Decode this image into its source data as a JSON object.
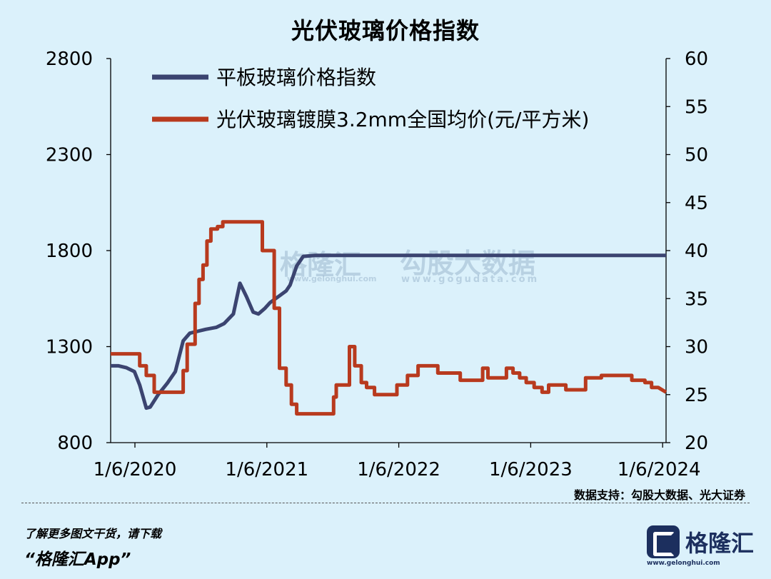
{
  "title": "光伏玻璃价格指数",
  "source": "数据支持：勾股大数据、光大证券",
  "footer": {
    "line1": "了解更多图文干货，请下载",
    "line2": "“格隆汇App”"
  },
  "brand": {
    "name": "格隆汇",
    "url": "www.gelonghui.com",
    "corner": "格隆汇"
  },
  "watermark": {
    "left_text": "格隆汇",
    "left_url": "www.gelonghui.com",
    "right_text": "勾股大数据",
    "right_url": "www.gogudata.com"
  },
  "colors": {
    "flat": "#3b4470",
    "pv": "#b83a1e",
    "background": "#dbf1fb"
  },
  "chart_data": {
    "type": "line",
    "title": "光伏玻璃价格指数",
    "x_ticks": [
      "1/6/2020",
      "1/6/2021",
      "1/6/2022",
      "1/6/2023",
      "1/6/2024"
    ],
    "y_left_ticks": [
      "800",
      "1300",
      "1800",
      "2300",
      "2800"
    ],
    "y_left_lim": [
      800,
      2800
    ],
    "y_right_ticks": [
      "20",
      "25",
      "30",
      "35",
      "40",
      "45",
      "50",
      "55",
      "60"
    ],
    "y_right_lim": [
      20,
      60
    ],
    "x_lim": [
      2020.0,
      2024.21
    ],
    "legend_position": "top",
    "series": [
      {
        "name": "平板玻璃价格指数",
        "axis": "left",
        "points": [
          [
            2020.0,
            1200
          ],
          [
            2020.06,
            1200
          ],
          [
            2020.12,
            1190
          ],
          [
            2020.18,
            1170
          ],
          [
            2020.22,
            1100
          ],
          [
            2020.27,
            980
          ],
          [
            2020.3,
            985
          ],
          [
            2020.36,
            1050
          ],
          [
            2020.43,
            1110
          ],
          [
            2020.49,
            1170
          ],
          [
            2020.55,
            1330
          ],
          [
            2020.6,
            1370
          ],
          [
            2020.66,
            1380
          ],
          [
            2020.72,
            1390
          ],
          [
            2020.8,
            1400
          ],
          [
            2020.86,
            1420
          ],
          [
            2020.93,
            1470
          ],
          [
            2020.98,
            1630
          ],
          [
            2021.03,
            1560
          ],
          [
            2021.08,
            1480
          ],
          [
            2021.12,
            1470
          ],
          [
            2021.17,
            1500
          ],
          [
            2021.21,
            1530
          ],
          [
            2021.27,
            1560
          ],
          [
            2021.33,
            1590
          ],
          [
            2021.36,
            1620
          ],
          [
            2021.41,
            1720
          ],
          [
            2021.46,
            1770
          ],
          [
            2021.55,
            1775
          ],
          [
            2022.0,
            1775
          ],
          [
            2022.5,
            1775
          ],
          [
            2023.0,
            1775
          ],
          [
            2023.5,
            1775
          ],
          [
            2024.0,
            1775
          ],
          [
            2024.21,
            1775
          ]
        ]
      },
      {
        "name": "光伏玻璃镀膜3.2mm全国均价(元/平方米)",
        "axis": "right",
        "points": [
          [
            2020.0,
            29.25
          ],
          [
            2020.22,
            29.25
          ],
          [
            2020.22,
            28.0
          ],
          [
            2020.27,
            28.0
          ],
          [
            2020.27,
            27.0
          ],
          [
            2020.33,
            27.0
          ],
          [
            2020.33,
            25.25
          ],
          [
            2020.55,
            25.25
          ],
          [
            2020.55,
            27.5
          ],
          [
            2020.58,
            27.5
          ],
          [
            2020.58,
            30.25
          ],
          [
            2020.64,
            30.25
          ],
          [
            2020.64,
            34.5
          ],
          [
            2020.67,
            34.5
          ],
          [
            2020.67,
            37.0
          ],
          [
            2020.7,
            37.0
          ],
          [
            2020.7,
            38.5
          ],
          [
            2020.73,
            38.5
          ],
          [
            2020.73,
            41.0
          ],
          [
            2020.76,
            41.0
          ],
          [
            2020.76,
            42.25
          ],
          [
            2020.81,
            42.25
          ],
          [
            2020.81,
            42.5
          ],
          [
            2020.85,
            42.5
          ],
          [
            2020.85,
            43.0
          ],
          [
            2021.15,
            43.0
          ],
          [
            2021.15,
            40.0
          ],
          [
            2021.24,
            40.0
          ],
          [
            2021.24,
            34.0
          ],
          [
            2021.28,
            34.0
          ],
          [
            2021.28,
            27.75
          ],
          [
            2021.33,
            27.75
          ],
          [
            2021.33,
            26.0
          ],
          [
            2021.37,
            26.0
          ],
          [
            2021.37,
            24.0
          ],
          [
            2021.41,
            24.0
          ],
          [
            2021.41,
            23.0
          ],
          [
            2021.69,
            23.0
          ],
          [
            2021.69,
            24.75
          ],
          [
            2021.71,
            24.75
          ],
          [
            2021.71,
            26.0
          ],
          [
            2021.81,
            26.0
          ],
          [
            2021.81,
            30.0
          ],
          [
            2021.85,
            30.0
          ],
          [
            2021.85,
            28.0
          ],
          [
            2021.9,
            28.0
          ],
          [
            2021.9,
            26.25
          ],
          [
            2021.94,
            26.25
          ],
          [
            2021.94,
            25.75
          ],
          [
            2022.0,
            25.75
          ],
          [
            2022.0,
            25.0
          ],
          [
            2022.17,
            25.0
          ],
          [
            2022.17,
            26.0
          ],
          [
            2022.25,
            26.0
          ],
          [
            2022.25,
            27.0
          ],
          [
            2022.33,
            27.0
          ],
          [
            2022.33,
            28.0
          ],
          [
            2022.48,
            28.0
          ],
          [
            2022.48,
            27.25
          ],
          [
            2022.65,
            27.25
          ],
          [
            2022.65,
            26.5
          ],
          [
            2022.82,
            26.5
          ],
          [
            2022.82,
            27.75
          ],
          [
            2022.86,
            27.75
          ],
          [
            2022.86,
            26.75
          ],
          [
            2022.92,
            26.75
          ],
          [
            2023.0,
            26.75
          ],
          [
            2023.0,
            27.75
          ],
          [
            2023.05,
            27.75
          ],
          [
            2023.05,
            27.25
          ],
          [
            2023.1,
            27.25
          ],
          [
            2023.1,
            26.75
          ],
          [
            2023.15,
            26.75
          ],
          [
            2023.15,
            26.25
          ],
          [
            2023.21,
            26.25
          ],
          [
            2023.21,
            25.75
          ],
          [
            2023.27,
            25.75
          ],
          [
            2023.27,
            25.25
          ],
          [
            2023.32,
            25.25
          ],
          [
            2023.32,
            26.0
          ],
          [
            2023.45,
            26.0
          ],
          [
            2023.45,
            25.5
          ],
          [
            2023.6,
            25.5
          ],
          [
            2023.6,
            26.75
          ],
          [
            2023.72,
            26.75
          ],
          [
            2023.72,
            27.0
          ],
          [
            2023.95,
            27.0
          ],
          [
            2023.95,
            26.5
          ],
          [
            2024.05,
            26.5
          ],
          [
            2024.05,
            26.25
          ],
          [
            2024.1,
            26.25
          ],
          [
            2024.1,
            25.75
          ],
          [
            2024.15,
            25.75
          ],
          [
            2024.21,
            25.25
          ]
        ]
      }
    ]
  }
}
